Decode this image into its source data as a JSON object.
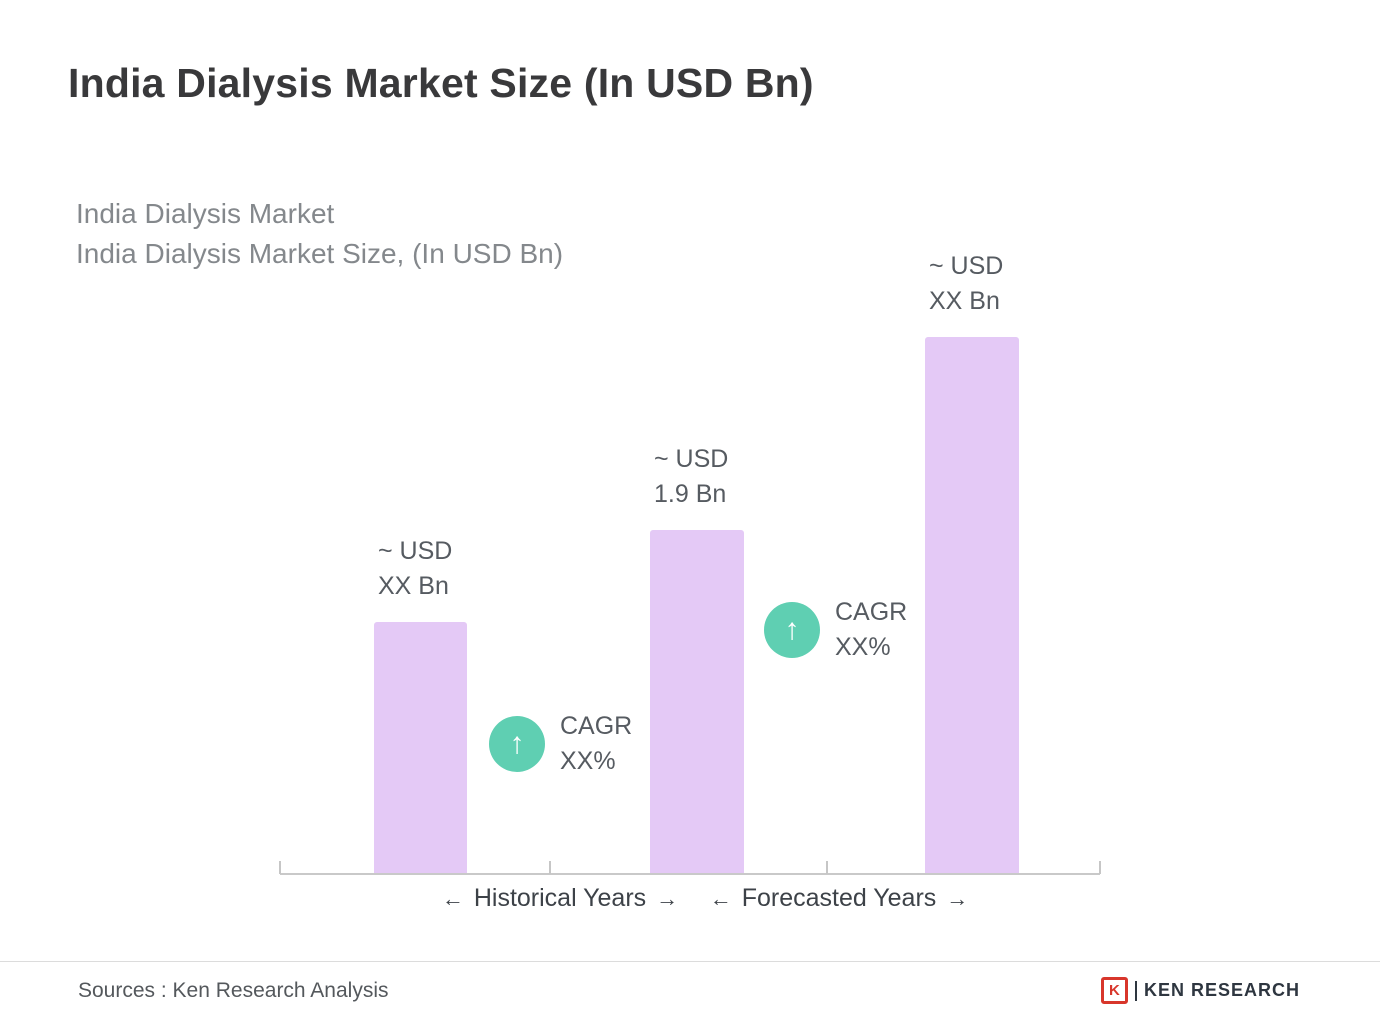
{
  "header": {
    "title": "India Dialysis Market Size (In USD Bn)",
    "subtitle_lines": [
      "India Dialysis Market",
      "India Dialysis Market Size, (In USD Bn)"
    ]
  },
  "chart_data": {
    "type": "bar",
    "title": "India Dialysis Market Size (In USD Bn)",
    "unit": "USD Bn",
    "grid": false,
    "legend": "none",
    "bars": [
      {
        "label_line1": "~ USD",
        "label_line2": "XX Bn",
        "value_text": "~ USD XX Bn",
        "value_usd_bn": "XX",
        "relative_height": 0.47
      },
      {
        "label_line1": "~ USD",
        "label_line2": "1.9 Bn",
        "value_text": "~ USD 1.9 Bn",
        "value_usd_bn": 1.9,
        "relative_height": 0.64
      },
      {
        "label_line1": "~ USD",
        "label_line2": "XX Bn",
        "value_text": "~ USD XX Bn",
        "value_usd_bn": "XX",
        "relative_height": 1.0
      }
    ],
    "cagr_badges": [
      {
        "line1": "CAGR",
        "line2": "XX%"
      },
      {
        "line1": "CAGR",
        "line2": "XX%"
      }
    ],
    "x_axis": {
      "segments": [
        {
          "label": "Historical Years"
        },
        {
          "label": "Forecasted Years"
        }
      ]
    },
    "colors": {
      "bar": "#E4C9F6",
      "badge": "#5FCFB2",
      "axis": "#C9C9C9"
    }
  },
  "icons": {
    "up_arrow": "↑",
    "left_arrow": "←",
    "right_arrow": "→"
  },
  "footer": {
    "source": "Sources : Ken Research Analysis",
    "logo": {
      "letter": "K",
      "text": "KEN RESEARCH"
    }
  }
}
